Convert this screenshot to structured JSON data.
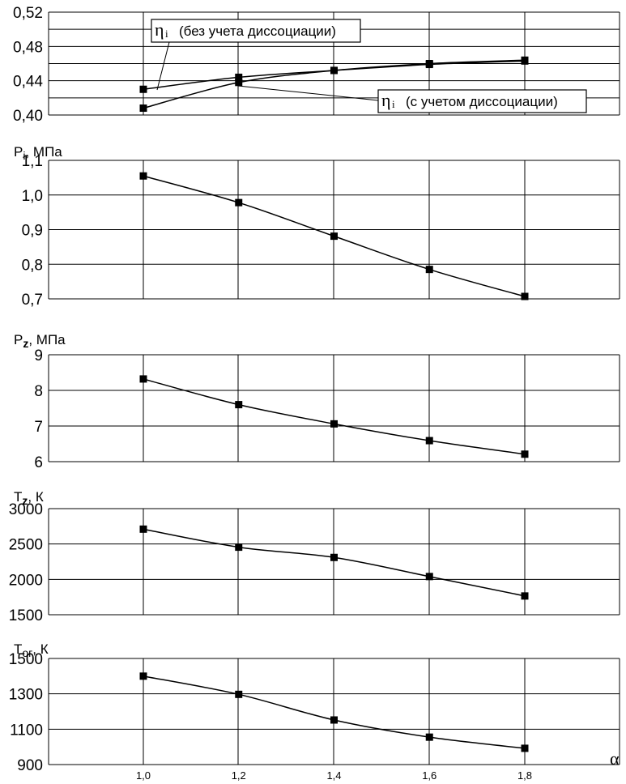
{
  "chart_data": [
    {
      "type": "line",
      "ylabel": "",
      "ylim": [
        0.4,
        0.52
      ],
      "yticks": [
        0.4,
        0.44,
        0.48,
        0.52
      ],
      "ytick_labels": [
        "0,40",
        "0,44",
        "0,48",
        "0,52"
      ],
      "grid": true,
      "x": [
        1.0,
        1.2,
        1.4,
        1.6,
        1.8
      ],
      "series": [
        {
          "name": "ηi (без учета диссоциации)",
          "values": [
            0.43,
            0.444,
            0.452,
            0.459,
            0.463
          ]
        },
        {
          "name": "ηi (с учетом диссоциации)",
          "values": [
            0.408,
            0.438,
            0.452,
            0.46,
            0.464
          ]
        }
      ],
      "legend": [
        {
          "symbol": "η",
          "subscript": "i",
          "text": "(без учета диссоциации)"
        },
        {
          "symbol": "η",
          "subscript": "i",
          "text": "(с учетом диссоциации)"
        }
      ]
    },
    {
      "type": "line",
      "ylabel": "Pᵢ, МПа",
      "ylim": [
        0.7,
        1.1
      ],
      "yticks": [
        0.7,
        0.8,
        0.9,
        1.0,
        1.1
      ],
      "ytick_labels": [
        "0,7",
        "0,8",
        "0,9",
        "1,0",
        "1,1"
      ],
      "grid": true,
      "x": [
        1.0,
        1.2,
        1.4,
        1.6,
        1.8
      ],
      "series": [
        {
          "values": [
            1.055,
            0.978,
            0.881,
            0.785,
            0.707
          ]
        }
      ]
    },
    {
      "type": "line",
      "ylabel": "Pz, МПа",
      "ylim": [
        6,
        9
      ],
      "yticks": [
        6,
        7,
        8,
        9
      ],
      "ytick_labels": [
        "6",
        "7",
        "8",
        "9"
      ],
      "grid": true,
      "x": [
        1.0,
        1.2,
        1.4,
        1.6,
        1.8
      ],
      "series": [
        {
          "values": [
            8.32,
            7.6,
            7.06,
            6.59,
            6.21
          ]
        }
      ]
    },
    {
      "type": "line",
      "ylabel": "Tz, К",
      "ylim": [
        1500,
        3000
      ],
      "yticks": [
        1500,
        2000,
        2500,
        3000
      ],
      "ytick_labels": [
        "1500",
        "2000",
        "2500",
        "3000"
      ],
      "grid": true,
      "x": [
        1.0,
        1.2,
        1.4,
        1.6,
        1.8
      ],
      "series": [
        {
          "values": [
            2710,
            2455,
            2310,
            2040,
            1765
          ]
        }
      ]
    },
    {
      "type": "line",
      "ylabel": "Tог, К",
      "xlabel": "α",
      "ylim": [
        900,
        1500
      ],
      "yticks": [
        900,
        1100,
        1300,
        1500
      ],
      "ytick_labels": [
        "900",
        "1100",
        "1300",
        "1500"
      ],
      "xticks": [
        1.0,
        1.2,
        1.4,
        1.6,
        1.8
      ],
      "xtick_labels": [
        "1,0",
        "1,2",
        "1,4",
        "1,6",
        "1,8"
      ],
      "grid": true,
      "x": [
        1.0,
        1.2,
        1.4,
        1.6,
        1.8
      ],
      "series": [
        {
          "values": [
            1400,
            1297,
            1152,
            1055,
            992
          ]
        }
      ]
    }
  ]
}
